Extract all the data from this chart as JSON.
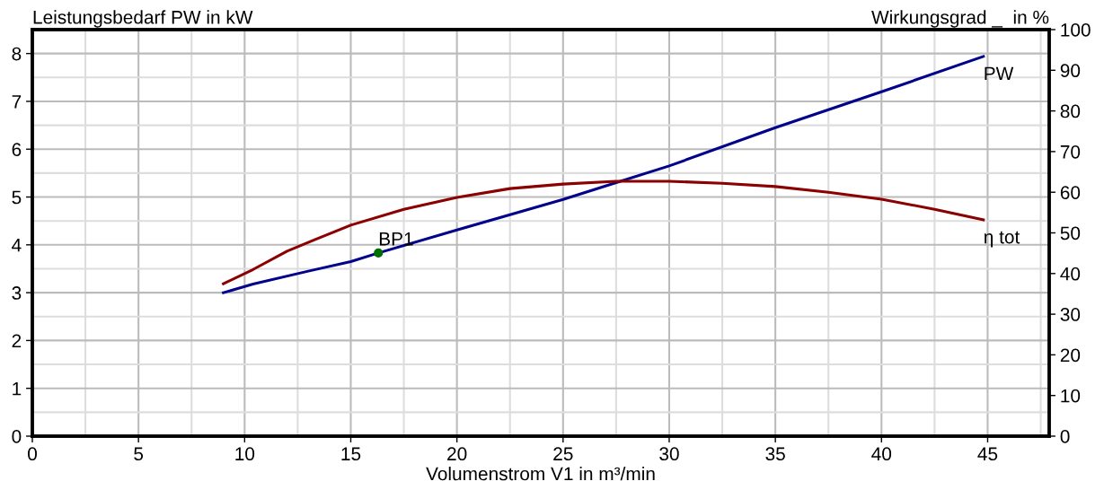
{
  "chart_data": {
    "type": "line",
    "xlabel": "Volumenstrom V1 in m³/min",
    "ylabel": "Leistungsbedarf PW in kW",
    "y2label": "Wirkungsgrad _  in %",
    "xlim": [
      0,
      47.9
    ],
    "xticks": [
      0,
      5,
      10,
      15,
      20,
      25,
      30,
      35,
      40,
      45
    ],
    "ylim": [
      0,
      8.5
    ],
    "yticks": [
      0,
      1,
      2,
      3,
      4,
      5,
      6,
      7,
      8
    ],
    "y2lim": [
      0,
      100
    ],
    "y2ticks": [
      0,
      10,
      20,
      30,
      40,
      50,
      60,
      70,
      80,
      90,
      100
    ],
    "grid": true,
    "legend": false,
    "marker": "none",
    "line_style": "solid",
    "series": [
      {
        "name": "PW",
        "color": "#00008b",
        "x": [
          9,
          10.4,
          13,
          15,
          16.3,
          20,
          25,
          27.5,
          30,
          35,
          40,
          44.8
        ],
        "values": [
          3.0,
          3.18,
          3.45,
          3.65,
          3.83,
          4.31,
          4.95,
          5.3,
          5.65,
          6.45,
          7.2,
          7.94
        ]
      },
      {
        "name": "η tot",
        "color": "#8b0000",
        "axis": "y2",
        "x": [
          9,
          10.4,
          12,
          13.3,
          15,
          17.5,
          20,
          22.5,
          25,
          27.5,
          30,
          32.5,
          35,
          37.5,
          40,
          42.5,
          44.8
        ],
        "values": [
          37.5,
          41,
          45.5,
          48.3,
          51.9,
          55.8,
          58.7,
          60.9,
          62,
          62.7,
          62.7,
          62.2,
          61.4,
          60,
          58.3,
          55.8,
          53.2
        ]
      },
      {
        "name": "BP1",
        "type": "scatter",
        "color": "#007000",
        "marker": "circle",
        "x": [
          16.3
        ],
        "values": [
          3.83
        ]
      }
    ]
  }
}
